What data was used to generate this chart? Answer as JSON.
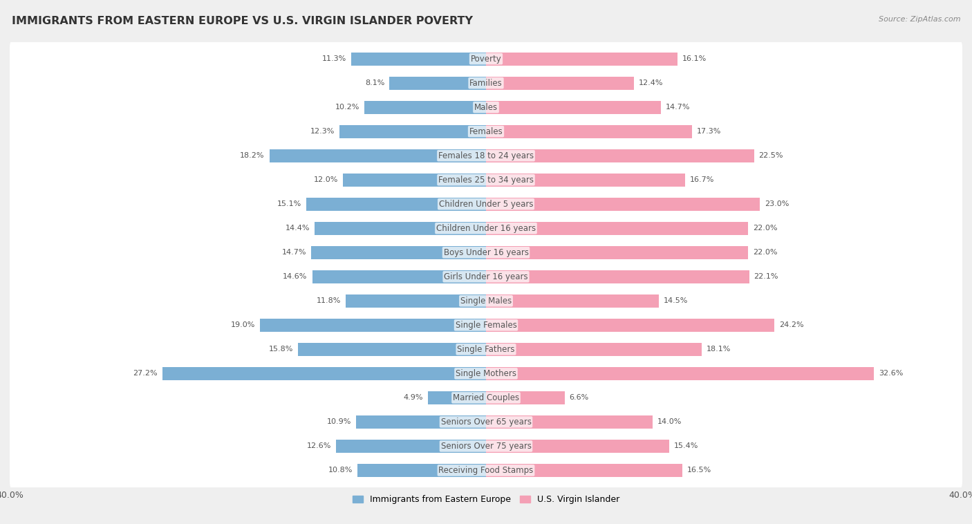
{
  "title": "IMMIGRANTS FROM EASTERN EUROPE VS U.S. VIRGIN ISLANDER POVERTY",
  "source": "Source: ZipAtlas.com",
  "categories": [
    "Poverty",
    "Families",
    "Males",
    "Females",
    "Females 18 to 24 years",
    "Females 25 to 34 years",
    "Children Under 5 years",
    "Children Under 16 years",
    "Boys Under 16 years",
    "Girls Under 16 years",
    "Single Males",
    "Single Females",
    "Single Fathers",
    "Single Mothers",
    "Married Couples",
    "Seniors Over 65 years",
    "Seniors Over 75 years",
    "Receiving Food Stamps"
  ],
  "left_values": [
    11.3,
    8.1,
    10.2,
    12.3,
    18.2,
    12.0,
    15.1,
    14.4,
    14.7,
    14.6,
    11.8,
    19.0,
    15.8,
    27.2,
    4.9,
    10.9,
    12.6,
    10.8
  ],
  "right_values": [
    16.1,
    12.4,
    14.7,
    17.3,
    22.5,
    16.7,
    23.0,
    22.0,
    22.0,
    22.1,
    14.5,
    24.2,
    18.1,
    32.6,
    6.6,
    14.0,
    15.4,
    16.5
  ],
  "left_color": "#7bafd4",
  "right_color": "#f4a0b5",
  "left_label": "Immigrants from Eastern Europe",
  "right_label": "U.S. Virgin Islander",
  "axis_limit": 40.0,
  "bg_color": "#efefef",
  "row_bg_color": "#ffffff",
  "row_alt_bg_color": "#e8e8e8",
  "title_fontsize": 11.5,
  "label_fontsize": 8.5,
  "value_fontsize": 8,
  "axis_label_fontsize": 9
}
